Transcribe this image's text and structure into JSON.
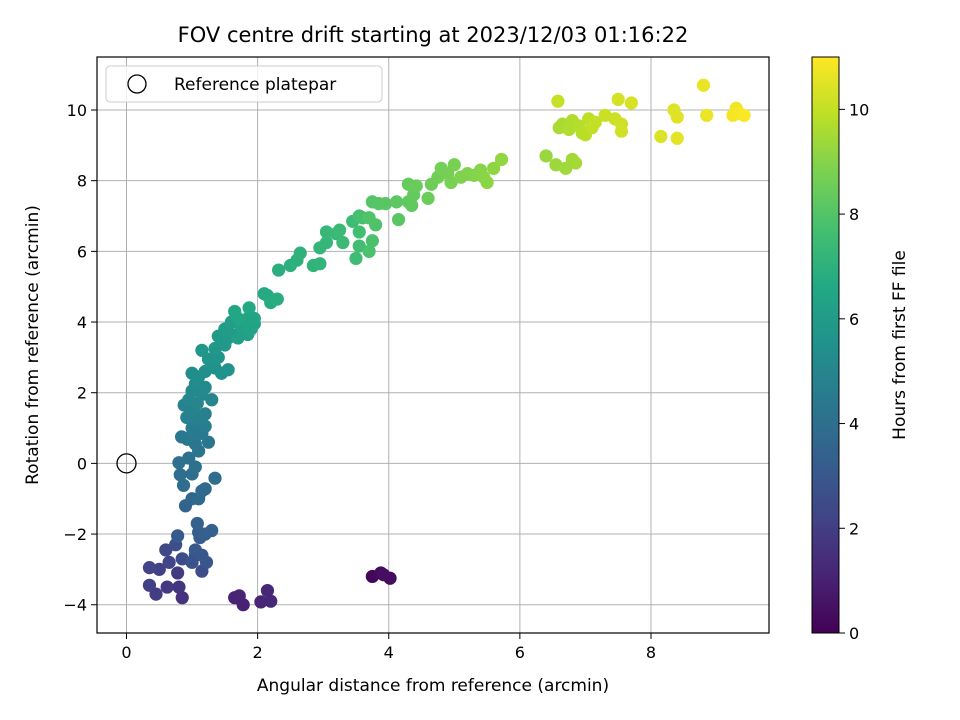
{
  "chart_data": {
    "type": "scatter",
    "title": "FOV centre drift starting at 2023/12/03 01:16:22",
    "xlabel": "Angular distance from reference (arcmin)",
    "ylabel": "Rotation from reference (arcmin)",
    "colorbar_label": "Hours from first FF file",
    "xlim": [
      -0.45,
      9.8
    ],
    "ylim": [
      -4.8,
      11.5
    ],
    "clim": [
      0,
      11
    ],
    "colormap": "viridis",
    "grid": true,
    "legend_position": "top-left",
    "x_ticks": [
      0,
      2,
      4,
      6,
      8
    ],
    "x_tick_labels": [
      "0",
      "2",
      "4",
      "6",
      "8"
    ],
    "y_ticks": [
      -4,
      -2,
      0,
      2,
      4,
      6,
      8,
      10
    ],
    "y_tick_labels": [
      "−4",
      "−2",
      "0",
      "2",
      "4",
      "6",
      "8",
      "10"
    ],
    "colorbar_ticks": [
      0,
      2,
      4,
      6,
      8,
      10
    ],
    "colorbar_tick_labels": [
      "0",
      "2",
      "4",
      "6",
      "8",
      "10"
    ],
    "reference": {
      "label": "Reference platepar",
      "x": 0,
      "y": 0
    },
    "points": [
      [
        3.75,
        -3.2,
        0.2
      ],
      [
        3.88,
        -3.1,
        0.3
      ],
      [
        4.02,
        -3.25,
        0.35
      ],
      [
        3.92,
        -3.15,
        0.4
      ],
      [
        1.78,
        -4.0,
        1.0
      ],
      [
        1.65,
        -3.8,
        1.05
      ],
      [
        1.72,
        -3.75,
        1.1
      ],
      [
        2.05,
        -3.92,
        1.15
      ],
      [
        2.2,
        -3.9,
        1.2
      ],
      [
        2.15,
        -3.6,
        1.25
      ],
      [
        0.85,
        -3.8,
        1.6
      ],
      [
        0.8,
        -3.5,
        1.7
      ],
      [
        0.62,
        -3.5,
        1.8
      ],
      [
        0.78,
        -3.1,
        1.9
      ],
      [
        0.45,
        -3.7,
        2.0
      ],
      [
        0.35,
        -3.45,
        2.05
      ],
      [
        0.5,
        -3.0,
        2.1
      ],
      [
        0.35,
        -2.95,
        2.2
      ],
      [
        0.65,
        -2.8,
        2.3
      ],
      [
        0.6,
        -2.45,
        2.4
      ],
      [
        0.85,
        -2.7,
        2.5
      ],
      [
        1.15,
        -3.05,
        2.55
      ],
      [
        0.75,
        -2.3,
        2.65
      ],
      [
        1.05,
        -2.6,
        2.75
      ],
      [
        1.0,
        -2.8,
        2.8
      ],
      [
        1.22,
        -2.8,
        2.9
      ],
      [
        1.15,
        -2.6,
        3.0
      ],
      [
        1.05,
        -2.45,
        3.05
      ],
      [
        0.78,
        -2.05,
        3.1
      ],
      [
        1.12,
        -2.1,
        3.2
      ],
      [
        1.1,
        -1.95,
        3.25
      ],
      [
        1.2,
        -2.0,
        3.3
      ],
      [
        1.3,
        -1.9,
        3.4
      ],
      [
        1.08,
        -1.7,
        3.45
      ],
      [
        0.9,
        -1.2,
        3.5
      ],
      [
        1.0,
        -1.0,
        3.6
      ],
      [
        1.1,
        -1.0,
        3.7
      ],
      [
        1.2,
        -0.72,
        3.75
      ],
      [
        1.15,
        -0.78,
        3.8
      ],
      [
        0.87,
        -0.62,
        3.85
      ],
      [
        1.35,
        -0.42,
        3.9
      ],
      [
        0.82,
        -0.32,
        3.95
      ],
      [
        1.0,
        -0.3,
        4.0
      ],
      [
        0.8,
        0.02,
        4.05
      ],
      [
        1.05,
        -0.1,
        4.1
      ],
      [
        0.95,
        0.15,
        4.15
      ],
      [
        1.1,
        0.35,
        4.2
      ],
      [
        1.05,
        0.55,
        4.25
      ],
      [
        1.25,
        0.6,
        4.3
      ],
      [
        0.93,
        0.68,
        4.35
      ],
      [
        0.84,
        0.75,
        4.4
      ],
      [
        1.0,
        0.8,
        4.45
      ],
      [
        1.15,
        0.85,
        4.5
      ],
      [
        1.0,
        1.0,
        4.55
      ],
      [
        1.2,
        1.05,
        4.6
      ],
      [
        1.1,
        1.2,
        4.65
      ],
      [
        1.12,
        1.3,
        4.7
      ],
      [
        0.92,
        1.3,
        4.75
      ],
      [
        1.2,
        1.4,
        4.8
      ],
      [
        1.02,
        1.5,
        4.85
      ],
      [
        0.88,
        1.65,
        4.9
      ],
      [
        1.08,
        1.7,
        4.95
      ],
      [
        1.3,
        1.8,
        5.0
      ],
      [
        0.95,
        1.8,
        5.05
      ],
      [
        1.15,
        1.95,
        5.1
      ],
      [
        1.0,
        2.05,
        5.15
      ],
      [
        1.2,
        2.15,
        5.2
      ],
      [
        1.05,
        2.25,
        5.25
      ],
      [
        1.1,
        2.45,
        5.3
      ],
      [
        1.0,
        2.55,
        5.35
      ],
      [
        1.2,
        2.6,
        5.4
      ],
      [
        1.35,
        2.7,
        5.45
      ],
      [
        1.45,
        2.55,
        5.5
      ],
      [
        1.55,
        2.65,
        5.55
      ],
      [
        1.3,
        2.8,
        5.6
      ],
      [
        1.25,
        2.95,
        5.65
      ],
      [
        1.4,
        3.0,
        5.7
      ],
      [
        1.15,
        3.2,
        5.75
      ],
      [
        1.35,
        3.25,
        5.8
      ],
      [
        1.5,
        3.35,
        5.85
      ],
      [
        1.4,
        3.6,
        5.9
      ],
      [
        1.55,
        3.55,
        5.95
      ],
      [
        1.6,
        3.65,
        6.0
      ],
      [
        1.5,
        3.8,
        6.05
      ],
      [
        1.6,
        4.0,
        6.1
      ],
      [
        1.7,
        3.55,
        6.15
      ],
      [
        1.85,
        3.65,
        6.2
      ],
      [
        1.75,
        3.85,
        6.25
      ],
      [
        1.9,
        3.8,
        6.3
      ],
      [
        1.95,
        3.95,
        6.35
      ],
      [
        1.85,
        4.1,
        6.4
      ],
      [
        1.95,
        4.1,
        6.45
      ],
      [
        1.7,
        4.1,
        6.5
      ],
      [
        1.65,
        4.3,
        6.55
      ],
      [
        1.87,
        4.4,
        6.6
      ],
      [
        2.1,
        4.8,
        6.65
      ],
      [
        2.15,
        4.75,
        6.7
      ],
      [
        2.2,
        4.55,
        6.75
      ],
      [
        2.3,
        4.65,
        6.8
      ],
      [
        2.32,
        5.47,
        6.9
      ],
      [
        2.5,
        5.6,
        6.95
      ],
      [
        2.6,
        5.75,
        7.0
      ],
      [
        2.65,
        5.95,
        7.05
      ],
      [
        2.85,
        5.6,
        7.1
      ],
      [
        2.95,
        5.65,
        7.15
      ],
      [
        2.95,
        6.1,
        7.2
      ],
      [
        3.05,
        6.25,
        7.25
      ],
      [
        3.05,
        6.55,
        7.3
      ],
      [
        3.2,
        6.5,
        7.35
      ],
      [
        3.25,
        6.6,
        7.4
      ],
      [
        3.3,
        6.25,
        7.45
      ],
      [
        3.45,
        6.85,
        7.5
      ],
      [
        3.5,
        5.8,
        7.55
      ],
      [
        3.55,
        6.15,
        7.6
      ],
      [
        3.55,
        6.55,
        7.65
      ],
      [
        3.6,
        6.95,
        7.7
      ],
      [
        3.55,
        7.0,
        7.75
      ],
      [
        3.7,
        6.0,
        7.8
      ],
      [
        3.75,
        6.3,
        7.85
      ],
      [
        3.8,
        6.75,
        7.9
      ],
      [
        3.7,
        6.95,
        7.95
      ],
      [
        3.75,
        7.4,
        8.0
      ],
      [
        3.85,
        7.35,
        8.05
      ],
      [
        3.95,
        7.35,
        8.1
      ],
      [
        4.15,
        6.9,
        8.15
      ],
      [
        4.12,
        7.4,
        8.2
      ],
      [
        4.3,
        7.4,
        8.25
      ],
      [
        4.35,
        7.3,
        8.3
      ],
      [
        4.38,
        7.6,
        8.35
      ],
      [
        4.3,
        7.9,
        8.4
      ],
      [
        4.42,
        7.85,
        8.45
      ],
      [
        4.6,
        7.5,
        8.5
      ],
      [
        4.65,
        7.9,
        8.55
      ],
      [
        4.75,
        8.1,
        8.6
      ],
      [
        4.8,
        8.35,
        8.65
      ],
      [
        4.9,
        8.2,
        8.7
      ],
      [
        5.0,
        8.45,
        8.75
      ],
      [
        4.95,
        7.95,
        8.8
      ],
      [
        5.1,
        8.1,
        8.85
      ],
      [
        5.2,
        8.2,
        8.9
      ],
      [
        5.3,
        8.15,
        8.95
      ],
      [
        5.4,
        8.3,
        9.0
      ],
      [
        5.45,
        8.1,
        9.05
      ],
      [
        5.5,
        7.95,
        9.1
      ],
      [
        5.6,
        8.35,
        9.15
      ],
      [
        5.72,
        8.6,
        9.2
      ],
      [
        6.4,
        8.7,
        9.3
      ],
      [
        6.55,
        8.45,
        9.35
      ],
      [
        6.7,
        8.35,
        9.4
      ],
      [
        6.8,
        8.6,
        9.45
      ],
      [
        6.85,
        8.5,
        9.5
      ],
      [
        6.6,
        9.5,
        9.55
      ],
      [
        6.65,
        9.6,
        9.6
      ],
      [
        6.75,
        9.45,
        9.65
      ],
      [
        6.8,
        9.7,
        9.7
      ],
      [
        6.9,
        9.55,
        9.75
      ],
      [
        6.95,
        9.35,
        9.8
      ],
      [
        7.0,
        9.3,
        9.85
      ],
      [
        7.05,
        9.75,
        9.9
      ],
      [
        7.1,
        9.5,
        9.95
      ],
      [
        7.15,
        9.65,
        10.0
      ],
      [
        6.58,
        10.25,
        10.05
      ],
      [
        7.3,
        9.85,
        10.1
      ],
      [
        7.45,
        9.75,
        10.15
      ],
      [
        7.55,
        9.6,
        10.2
      ],
      [
        7.55,
        9.4,
        10.25
      ],
      [
        7.5,
        10.3,
        10.3
      ],
      [
        7.7,
        10.2,
        10.35
      ],
      [
        8.15,
        9.25,
        10.4
      ],
      [
        8.35,
        10.0,
        10.45
      ],
      [
        8.4,
        9.8,
        10.5
      ],
      [
        8.4,
        9.2,
        10.55
      ],
      [
        8.8,
        10.7,
        10.65
      ],
      [
        8.85,
        9.85,
        10.7
      ],
      [
        9.3,
        10.05,
        10.8
      ],
      [
        9.25,
        9.85,
        10.85
      ],
      [
        9.35,
        9.9,
        10.9
      ],
      [
        9.42,
        9.85,
        10.95
      ]
    ]
  }
}
